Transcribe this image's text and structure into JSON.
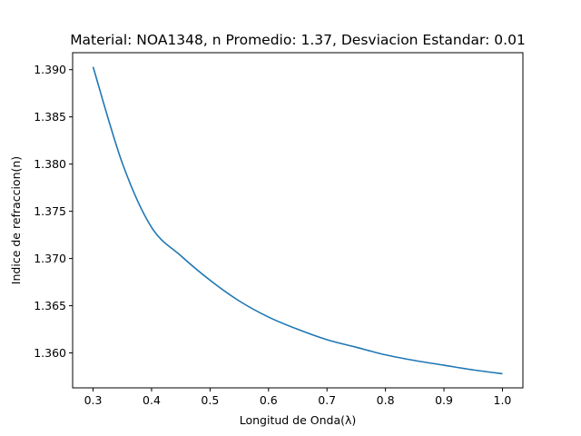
{
  "chart_data": {
    "type": "line",
    "title": "Material: NOA1348, n Promedio: 1.37, Desviacion Estandar: 0.01",
    "xlabel": "Longitud de Onda(λ)",
    "ylabel": "Indice de refraccion(n)",
    "xlim": [
      0.265,
      1.035
    ],
    "ylim": [
      1.3563,
      1.3918
    ],
    "xticks": [
      0.3,
      0.4,
      0.5,
      0.6,
      0.7,
      0.8,
      0.9,
      1.0
    ],
    "xtick_labels": [
      "0.3",
      "0.4",
      "0.5",
      "0.6",
      "0.7",
      "0.8",
      "0.9",
      "1.0"
    ],
    "yticks": [
      1.36,
      1.365,
      1.37,
      1.375,
      1.38,
      1.385,
      1.39
    ],
    "ytick_labels": [
      "1.360",
      "1.365",
      "1.370",
      "1.375",
      "1.380",
      "1.385",
      "1.390"
    ],
    "grid": false,
    "series": [
      {
        "color": "#1f77b4",
        "x": [
          0.3,
          0.35,
          0.4,
          0.45,
          0.5,
          0.55,
          0.6,
          0.65,
          0.7,
          0.75,
          0.8,
          0.85,
          0.9,
          0.95,
          1.0
        ],
        "y": [
          1.3903,
          1.3801,
          1.3733,
          1.3703,
          1.3677,
          1.3655,
          1.3638,
          1.3625,
          1.3614,
          1.3606,
          1.3598,
          1.3592,
          1.3587,
          1.3582,
          1.3578
        ]
      }
    ]
  }
}
